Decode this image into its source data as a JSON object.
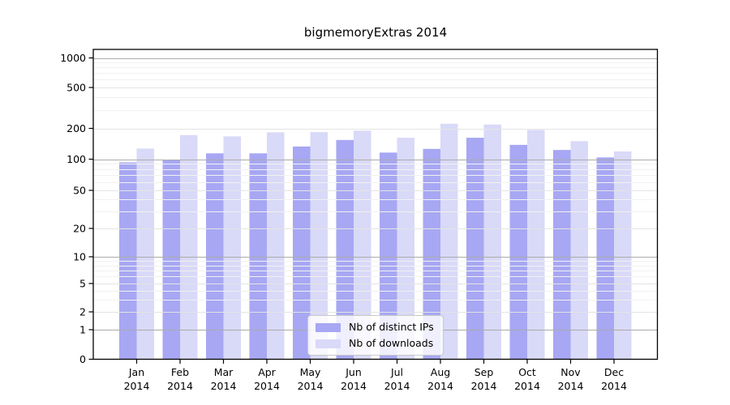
{
  "chart_data": {
    "type": "bar",
    "title": "bigmemoryExtras 2014",
    "categories": [
      "Jan",
      "Feb",
      "Mar",
      "Apr",
      "May",
      "Jun",
      "Jul",
      "Aug",
      "Sep",
      "Oct",
      "Nov",
      "Dec"
    ],
    "category_year": "2014",
    "series": [
      {
        "name": "Nb of distinct IPs",
        "color": "#a7a7f3",
        "values": [
          93,
          98,
          114,
          114,
          133,
          154,
          116,
          126,
          162,
          138,
          123,
          104
        ]
      },
      {
        "name": "Nb of downloads",
        "color": "#d9d9f8",
        "values": [
          127,
          172,
          167,
          183,
          184,
          190,
          162,
          222,
          218,
          193,
          150,
          119
        ]
      }
    ],
    "y_axis": {
      "scale": "log",
      "ticks": [
        0,
        1,
        2,
        5,
        10,
        20,
        50,
        100,
        200,
        500,
        1000
      ],
      "range": [
        0,
        1000
      ]
    },
    "xlabel": "",
    "ylabel": "",
    "grid": {
      "shown": true,
      "major_at": [
        1,
        10,
        100,
        1000
      ]
    },
    "legend": {
      "position": "bottom-center"
    },
    "colors": {
      "major_grid": "#ababab",
      "mid_grid": "#e4e4e4",
      "minor_grid": "#f1f1f1",
      "spine": "#000000",
      "text": "#000000",
      "background": "#ffffff"
    }
  }
}
